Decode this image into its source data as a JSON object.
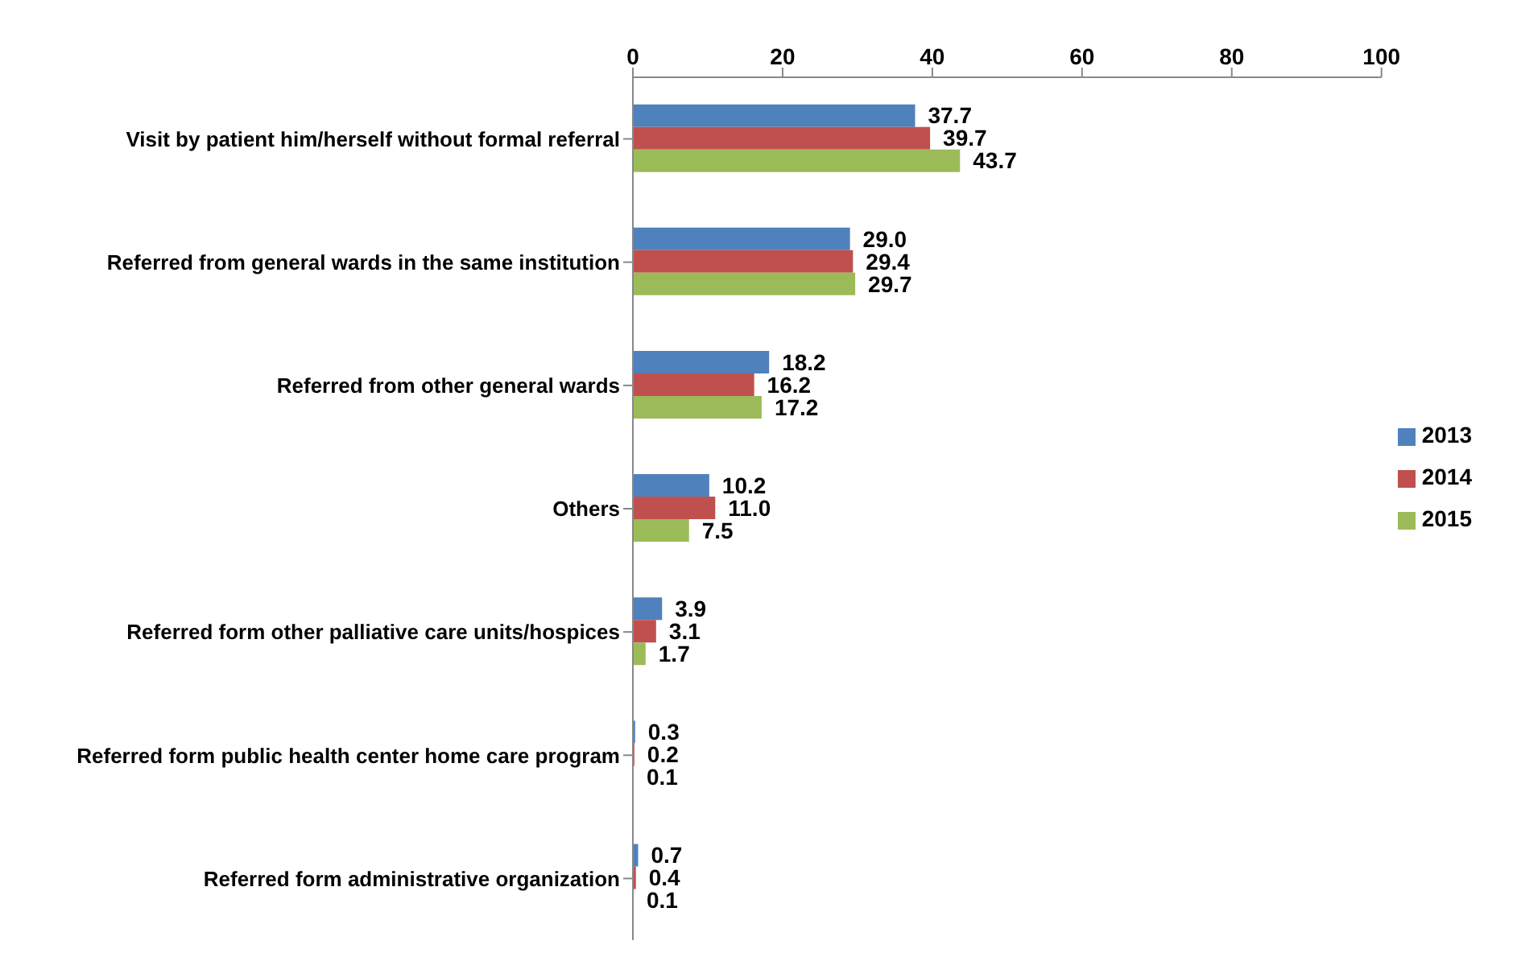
{
  "chart_data": {
    "type": "bar",
    "orientation": "horizontal",
    "categories": [
      "Visit by patient him/herself without formal referral",
      "Referred from general wards in the same institution",
      "Referred from other general wards",
      "Others",
      "Referred form other palliative care units/hospices",
      "Referred form public health center home care program",
      "Referred form administrative organization"
    ],
    "series": [
      {
        "name": "2013",
        "color": "#4f81bd",
        "values": [
          37.7,
          29.0,
          18.2,
          10.2,
          3.9,
          0.3,
          0.7
        ],
        "value_labels": [
          "37.7",
          "29.0",
          "18.2",
          "10.2",
          "3.9",
          "0.3",
          "0.7"
        ]
      },
      {
        "name": "2014",
        "color": "#c0504d",
        "values": [
          39.7,
          29.4,
          16.2,
          11.0,
          3.1,
          0.2,
          0.4
        ],
        "value_labels": [
          "39.7",
          "29.4",
          "16.2",
          "11.0",
          "3.1",
          "0.2",
          "0.4"
        ]
      },
      {
        "name": "2015",
        "color": "#9bbb59",
        "values": [
          43.7,
          29.7,
          17.2,
          7.5,
          1.7,
          0.1,
          0.1
        ],
        "value_labels": [
          "43.7",
          "29.7",
          "17.2",
          "7.5",
          "1.7",
          "0.1",
          "0.1"
        ]
      }
    ],
    "xlim": [
      0,
      100
    ],
    "xticks": [
      0,
      20,
      40,
      60,
      80,
      100
    ],
    "grid": false,
    "legend": "right"
  }
}
